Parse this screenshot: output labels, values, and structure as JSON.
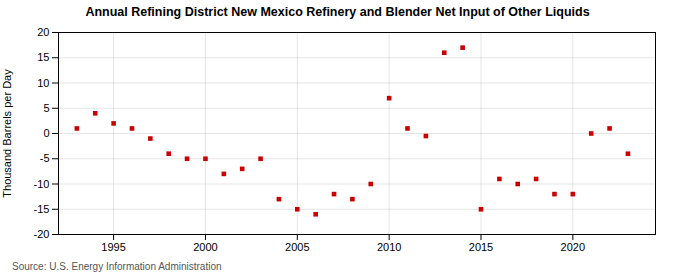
{
  "chart_data": {
    "type": "scatter",
    "title": "Annual Refining District New Mexico Refinery and Blender Net Input of Other Liquids",
    "ylabel": "Thousand Barrels per Day",
    "annotations": [
      "Source: U.S. Energy Information Administration"
    ],
    "x": [
      1993,
      1994,
      1995,
      1996,
      1997,
      1998,
      1999,
      2000,
      2001,
      2002,
      2003,
      2004,
      2005,
      2006,
      2007,
      2008,
      2009,
      2010,
      2011,
      2012,
      2013,
      2014,
      2015,
      2016,
      2017,
      2018,
      2019,
      2020,
      2021,
      2022,
      2023
    ],
    "values": [
      1,
      4,
      2,
      1,
      -1,
      -4,
      -5,
      -5,
      -8,
      -7,
      -5,
      -13,
      -15,
      -16,
      -12,
      -13,
      -10,
      7,
      1,
      -0.5,
      16,
      17,
      -15,
      -9,
      -10,
      -9,
      -12,
      -12,
      0,
      1,
      -4
    ],
    "color": "#cc0000",
    "marker": "square",
    "xlim": [
      1992,
      2024.5
    ],
    "ylim": [
      -20,
      20
    ],
    "xticks": [
      1995,
      2000,
      2005,
      2010,
      2015,
      2020
    ],
    "yticks": [
      -20,
      -15,
      -10,
      -5,
      0,
      5,
      10,
      15,
      20
    ],
    "grid": true
  }
}
